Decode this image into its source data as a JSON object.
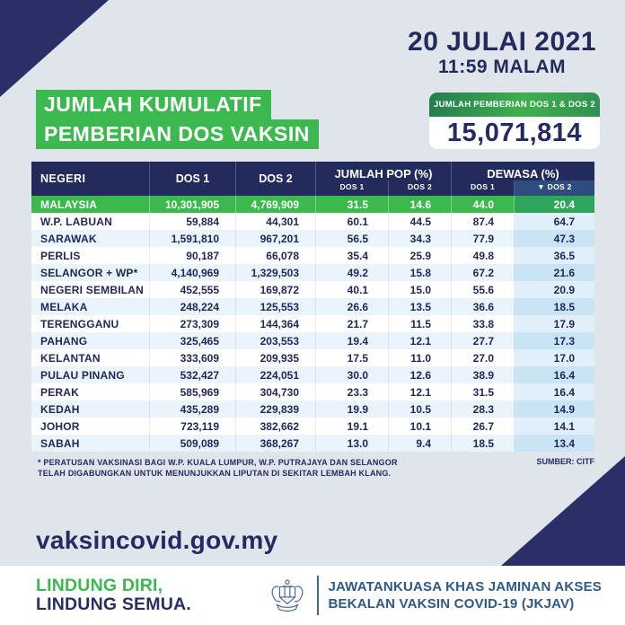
{
  "header": {
    "date_line1": "20 JULAI 2021",
    "date_line2": "11:59 MALAM",
    "title_line1": "JUMLAH KUMULATIF",
    "title_line2": "PEMBERIAN DOS VAKSIN",
    "badge_label": "JUMLAH PEMBERIAN DOS 1 & DOS 2",
    "badge_value": "15,071,814"
  },
  "table_head": {
    "negeri": "NEGERI",
    "dos1": "DOS 1",
    "dos2": "DOS 2",
    "pop_group": "JUMLAH POP (%)",
    "dewasa_group": "DEWASA (%)",
    "pop_sub1": "DOS 1",
    "pop_sub2": "DOS 2",
    "dew_sub1": "DOS 1",
    "dew_sub2": "▼ DOS 2"
  },
  "chart_data": {
    "type": "table",
    "title": "JUMLAH KUMULATIF PEMBERIAN DOS VAKSIN",
    "columns": [
      "NEGERI",
      "DOS 1",
      "DOS 2",
      "JUMLAH POP (%) DOS 1",
      "JUMLAH POP (%) DOS 2",
      "DEWASA (%) DOS 1",
      "DEWASA (%) DOS 2"
    ],
    "rows": [
      [
        "MALAYSIA",
        "10,301,905",
        "4,769,909",
        "31.5",
        "14.6",
        "44.0",
        "20.4"
      ],
      [
        "W.P. LABUAN",
        "59,884",
        "44,301",
        "60.1",
        "44.5",
        "87.4",
        "64.7"
      ],
      [
        "SARAWAK",
        "1,591,810",
        "967,201",
        "56.5",
        "34.3",
        "77.9",
        "47.3"
      ],
      [
        "PERLIS",
        "90,187",
        "66,078",
        "35.4",
        "25.9",
        "49.8",
        "36.5"
      ],
      [
        "SELANGOR + WP*",
        "4,140,969",
        "1,329,503",
        "49.2",
        "15.8",
        "67.2",
        "21.6"
      ],
      [
        "NEGERI SEMBILAN",
        "452,555",
        "169,872",
        "40.1",
        "15.0",
        "55.6",
        "20.9"
      ],
      [
        "MELAKA",
        "248,224",
        "125,553",
        "26.6",
        "13.5",
        "36.6",
        "18.5"
      ],
      [
        "TERENGGANU",
        "273,309",
        "144,364",
        "21.7",
        "11.5",
        "33.8",
        "17.9"
      ],
      [
        "PAHANG",
        "325,465",
        "203,553",
        "19.4",
        "12.1",
        "27.7",
        "17.3"
      ],
      [
        "KELANTAN",
        "333,609",
        "209,935",
        "17.5",
        "11.0",
        "27.0",
        "17.0"
      ],
      [
        "PULAU PINANG",
        "532,427",
        "224,051",
        "30.0",
        "12.6",
        "38.9",
        "16.4"
      ],
      [
        "PERAK",
        "585,969",
        "304,730",
        "23.3",
        "12.1",
        "31.5",
        "16.4"
      ],
      [
        "KEDAH",
        "435,289",
        "229,839",
        "19.9",
        "10.5",
        "28.3",
        "14.9"
      ],
      [
        "JOHOR",
        "723,119",
        "382,662",
        "19.1",
        "10.1",
        "26.7",
        "14.1"
      ],
      [
        "SABAH",
        "509,089",
        "368,267",
        "13.0",
        "9.4",
        "18.5",
        "13.4"
      ]
    ],
    "highlight_row": "MALAYSIA",
    "sorted_by": "DEWASA (%) DOS 2 descending"
  },
  "footnote": {
    "line1": "* PERATUSAN VAKSINASI BAGI W.P. KUALA LUMPUR, W.P. PUTRAJAYA DAN SELANGOR",
    "line2": "TELAH DIGABUNGKAN UNTUK MENUNJUKKAN LIPUTAN DI SEKITAR LEMBAH KLANG.",
    "source": "SUMBER: CITF"
  },
  "website": "vaksincovid.gov.my",
  "footer": {
    "slogan_line1": "LINDUNG DIRI,",
    "slogan_line2": "LINDUNG SEMUA.",
    "org_line1": "JAWATANKUASA KHAS JAMINAN AKSES",
    "org_line2": "BEKALAN VAKSIN COVID-19 (JKJAV)"
  },
  "colors": {
    "background": "#dfe5ea",
    "navy": "#232a5e",
    "green": "#3cb94e",
    "header_navy": "#232a5c",
    "subheader_blue": "#2e4d7e",
    "row_alt_blue": "#eaf4fb",
    "last_col_light": "#e0effa",
    "last_col_dark": "#c9e5f5",
    "org_blue": "#2d5984"
  }
}
